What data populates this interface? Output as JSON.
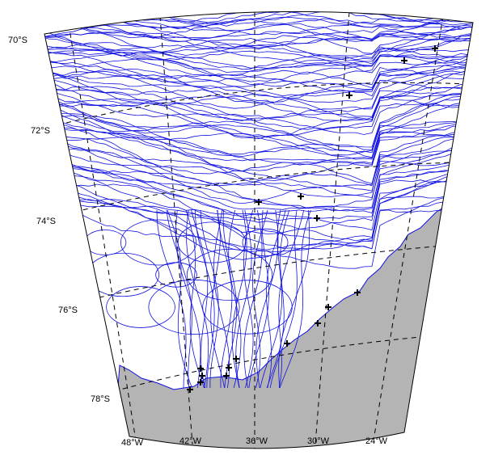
{
  "map": {
    "latitude_labels": [
      "70°S",
      "72°S",
      "74°S",
      "76°S",
      "78°S"
    ],
    "longitude_labels": [
      "48°W",
      "42°W",
      "36°W",
      "30°W",
      "24°W"
    ]
  }
}
